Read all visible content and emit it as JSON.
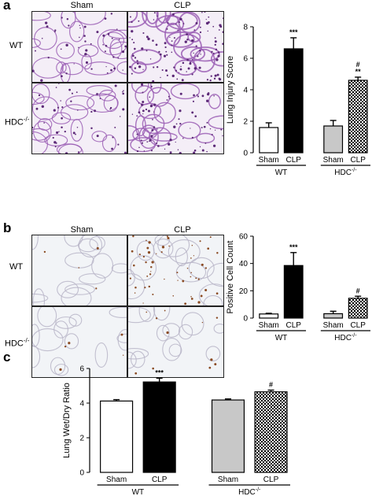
{
  "panels": {
    "a": {
      "letter": "a",
      "col_labels": [
        "Sham",
        "CLP"
      ],
      "row_labels": [
        "WT",
        "HDC"
      ],
      "row_label_sup": "-/-",
      "histology": [
        [
          "sham-wt",
          "clp-wt"
        ],
        [
          "sham-hdc",
          "clp-hdc"
        ]
      ]
    },
    "b": {
      "letter": "b",
      "col_labels": [
        "Sham",
        "CLP"
      ],
      "row_labels": [
        "WT",
        "HDC"
      ],
      "row_label_sup": "-/-",
      "histology": [
        [
          "sham-wt",
          "clp-wt"
        ],
        [
          "sham-hdc",
          "clp-hdc"
        ]
      ]
    },
    "c": {
      "letter": "c"
    }
  },
  "colors": {
    "he_stain": "#9b5fb5",
    "he_bg": "#f4eef7",
    "ihc_bg": "#f2f4f7",
    "ihc_tissue": "#b9b5c8",
    "ihc_positive": "#8a4a22",
    "bar_black": "#000000",
    "bar_gray": "#c8c8c8"
  },
  "chart_data": [
    {
      "type": "bar",
      "id": "lung-injury",
      "ylabel": "Lung Injury Score",
      "ylim": [
        0,
        8
      ],
      "yticks": [
        "0",
        "2",
        "4",
        "6",
        "8"
      ],
      "categories": [
        "Sham",
        "CLP",
        "Sham",
        "CLP"
      ],
      "groups": [
        {
          "label": "WT",
          "sup": ""
        },
        {
          "label": "HDC",
          "sup": "-/-"
        }
      ],
      "values": [
        1.6,
        6.6,
        1.7,
        4.6
      ],
      "errors": [
        0.3,
        0.7,
        0.35,
        0.2
      ],
      "fills": [
        "white",
        "black",
        "gray",
        "checker"
      ],
      "annotations": [
        "",
        "***",
        "",
        "#\n**"
      ]
    },
    {
      "type": "bar",
      "id": "positive-cells",
      "ylabel": "Positive Cell Count",
      "ylim": [
        0,
        60
      ],
      "yticks": [
        "0",
        "20",
        "40",
        "60"
      ],
      "categories": [
        "Sham",
        "CLP",
        "Sham",
        "CLP"
      ],
      "groups": [
        {
          "label": "WT",
          "sup": ""
        },
        {
          "label": "HDC",
          "sup": "-/-"
        }
      ],
      "values": [
        3,
        38.5,
        3.2,
        14.5
      ],
      "errors": [
        0.5,
        9.5,
        1.8,
        1.5
      ],
      "fills": [
        "white",
        "black",
        "gray",
        "checker"
      ],
      "annotations": [
        "",
        "***",
        "",
        "#"
      ]
    },
    {
      "type": "bar",
      "id": "wet-dry",
      "ylabel": "Lung Wet/Dry Ratio",
      "ylim": [
        0,
        6
      ],
      "yticks": [
        "0",
        "2",
        "4",
        "6"
      ],
      "categories": [
        "Sham",
        "CLP",
        "Sham",
        "CLP"
      ],
      "groups": [
        {
          "label": "WT",
          "sup": ""
        },
        {
          "label": "HDC",
          "sup": "-/-"
        }
      ],
      "values": [
        4.12,
        5.22,
        4.18,
        4.65
      ],
      "errors": [
        0.08,
        0.22,
        0.06,
        0.1
      ],
      "fills": [
        "white",
        "black",
        "gray",
        "checker"
      ],
      "annotations": [
        "",
        "***",
        "",
        "#"
      ]
    }
  ]
}
